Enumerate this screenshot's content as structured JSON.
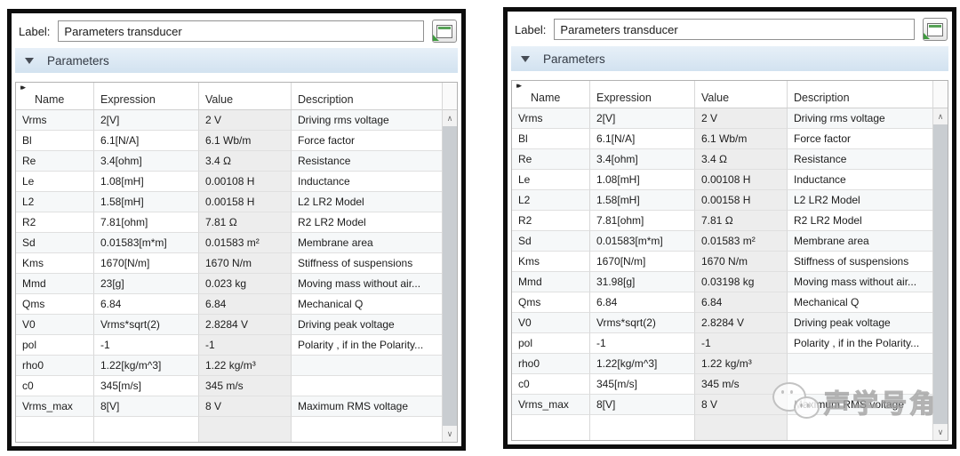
{
  "colors": {
    "panel_border": "#0d0d0d",
    "section_header_top": "#e7f0f8",
    "section_header_bottom": "#d2e2f0",
    "value_column_bg": "#ededed",
    "accent_green": "#3f9b3f",
    "scrollbar_thumb": "#c9cdd1"
  },
  "icons": {
    "expand_columns": "▸▸",
    "chevron_up": "∧",
    "chevron_down": "∨"
  },
  "panels": [
    {
      "label_field": {
        "label": "Label:",
        "value": "Parameters transducer"
      },
      "section": {
        "title": "Parameters"
      },
      "table": {
        "columns": [
          "Name",
          "Expression",
          "Value",
          "Description"
        ],
        "rows": [
          [
            "Vrms",
            "2[V]",
            "2 V",
            "Driving rms voltage"
          ],
          [
            "Bl",
            "6.1[N/A]",
            "6.1 Wb/m",
            "Force factor"
          ],
          [
            "Re",
            "3.4[ohm]",
            "3.4 Ω",
            "Resistance"
          ],
          [
            "Le",
            "1.08[mH]",
            "0.00108 H",
            "Inductance"
          ],
          [
            "L2",
            "1.58[mH]",
            "0.00158 H",
            "L2 LR2 Model"
          ],
          [
            "R2",
            "7.81[ohm]",
            "7.81 Ω",
            "R2 LR2 Model"
          ],
          [
            "Sd",
            "0.01583[m*m]",
            "0.01583 m²",
            "Membrane area"
          ],
          [
            "Kms",
            "1670[N/m]",
            "1670 N/m",
            "Stiffness of suspensions"
          ],
          [
            "Mmd",
            "23[g]",
            "0.023 kg",
            "Moving mass without air..."
          ],
          [
            "Qms",
            "6.84",
            "6.84",
            "Mechanical Q"
          ],
          [
            "V0",
            "Vrms*sqrt(2)",
            "2.8284 V",
            "Driving peak voltage"
          ],
          [
            "pol",
            "-1",
            "-1",
            "Polarity , if in the Polarity..."
          ],
          [
            "rho0",
            "1.22[kg/m^3]",
            "1.22 kg/m³",
            ""
          ],
          [
            "c0",
            "345[m/s]",
            "345 m/s",
            ""
          ],
          [
            "Vrms_max",
            "8[V]",
            "8 V",
            "Maximum RMS voltage"
          ]
        ]
      }
    },
    {
      "label_field": {
        "label": "Label:",
        "value": "Parameters transducer"
      },
      "section": {
        "title": "Parameters"
      },
      "table": {
        "columns": [
          "Name",
          "Expression",
          "Value",
          "Description"
        ],
        "rows": [
          [
            "Vrms",
            "2[V]",
            "2 V",
            "Driving rms voltage"
          ],
          [
            "Bl",
            "6.1[N/A]",
            "6.1 Wb/m",
            "Force factor"
          ],
          [
            "Re",
            "3.4[ohm]",
            "3.4 Ω",
            "Resistance"
          ],
          [
            "Le",
            "1.08[mH]",
            "0.00108 H",
            "Inductance"
          ],
          [
            "L2",
            "1.58[mH]",
            "0.00158 H",
            "L2 LR2 Model"
          ],
          [
            "R2",
            "7.81[ohm]",
            "7.81 Ω",
            "R2 LR2 Model"
          ],
          [
            "Sd",
            "0.01583[m*m]",
            "0.01583 m²",
            "Membrane area"
          ],
          [
            "Kms",
            "1670[N/m]",
            "1670 N/m",
            "Stiffness of suspensions"
          ],
          [
            "Mmd",
            "31.98[g]",
            "0.03198 kg",
            "Moving mass without air..."
          ],
          [
            "Qms",
            "6.84",
            "6.84",
            "Mechanical Q"
          ],
          [
            "V0",
            "Vrms*sqrt(2)",
            "2.8284 V",
            "Driving peak voltage"
          ],
          [
            "pol",
            "-1",
            "-1",
            "Polarity , if in the Polarity..."
          ],
          [
            "rho0",
            "1.22[kg/m^3]",
            "1.22 kg/m³",
            ""
          ],
          [
            "c0",
            "345[m/s]",
            "345 m/s",
            ""
          ],
          [
            "Vrms_max",
            "8[V]",
            "8 V",
            "Maximum RMS voltage"
          ]
        ]
      },
      "watermark": {
        "text": "声学号角"
      }
    }
  ]
}
